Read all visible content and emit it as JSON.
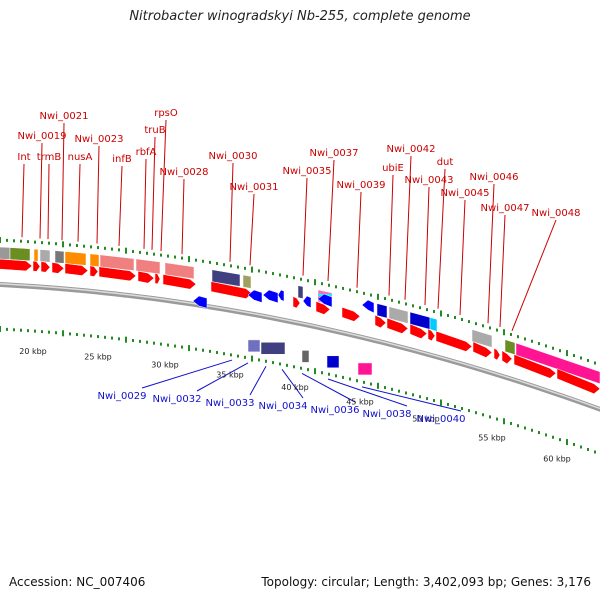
{
  "title": "Nitrobacter winogradskyi Nb-255, complete genome",
  "accession": "Accession: NC_007406",
  "stats": "Topology: circular; Length: 3,402,093 bp; Genes: 3,176",
  "colors": {
    "forward_gene": "#ff0000",
    "reverse_gene": "#0000ff",
    "top_label": "#cc0000",
    "bottom_label": "#1010cc",
    "tick": "#228b22",
    "backbone": "#888888"
  },
  "kbp_labels": [
    "20 kbp",
    "25 kbp",
    "30 kbp",
    "35 kbp",
    "40 kbp",
    "45 kbp",
    "50 kbp",
    "55 kbp",
    "60 kbp"
  ],
  "top_labels": [
    "Int",
    "Nwi_0019",
    "trmB",
    "Nwi_0021",
    "nusA",
    "Nwi_0023",
    "infB",
    "rbfA",
    "truB",
    "rpsO",
    "Nwi_0028",
    "Nwi_0030",
    "Nwi_0031",
    "Nwi_0035",
    "Nwi_0037",
    "Nwi_0039",
    "ubiE",
    "Nwi_0042",
    "Nwi_0043",
    "dut",
    "Nwi_0045",
    "Nwi_0046",
    "Nwi_0047",
    "Nwi_0048"
  ],
  "bottom_labels": [
    "Nwi_0029",
    "Nwi_0032",
    "Nwi_0033",
    "Nwi_0034",
    "Nwi_0036",
    "Nwi_0038",
    "Nwi_0040"
  ]
}
